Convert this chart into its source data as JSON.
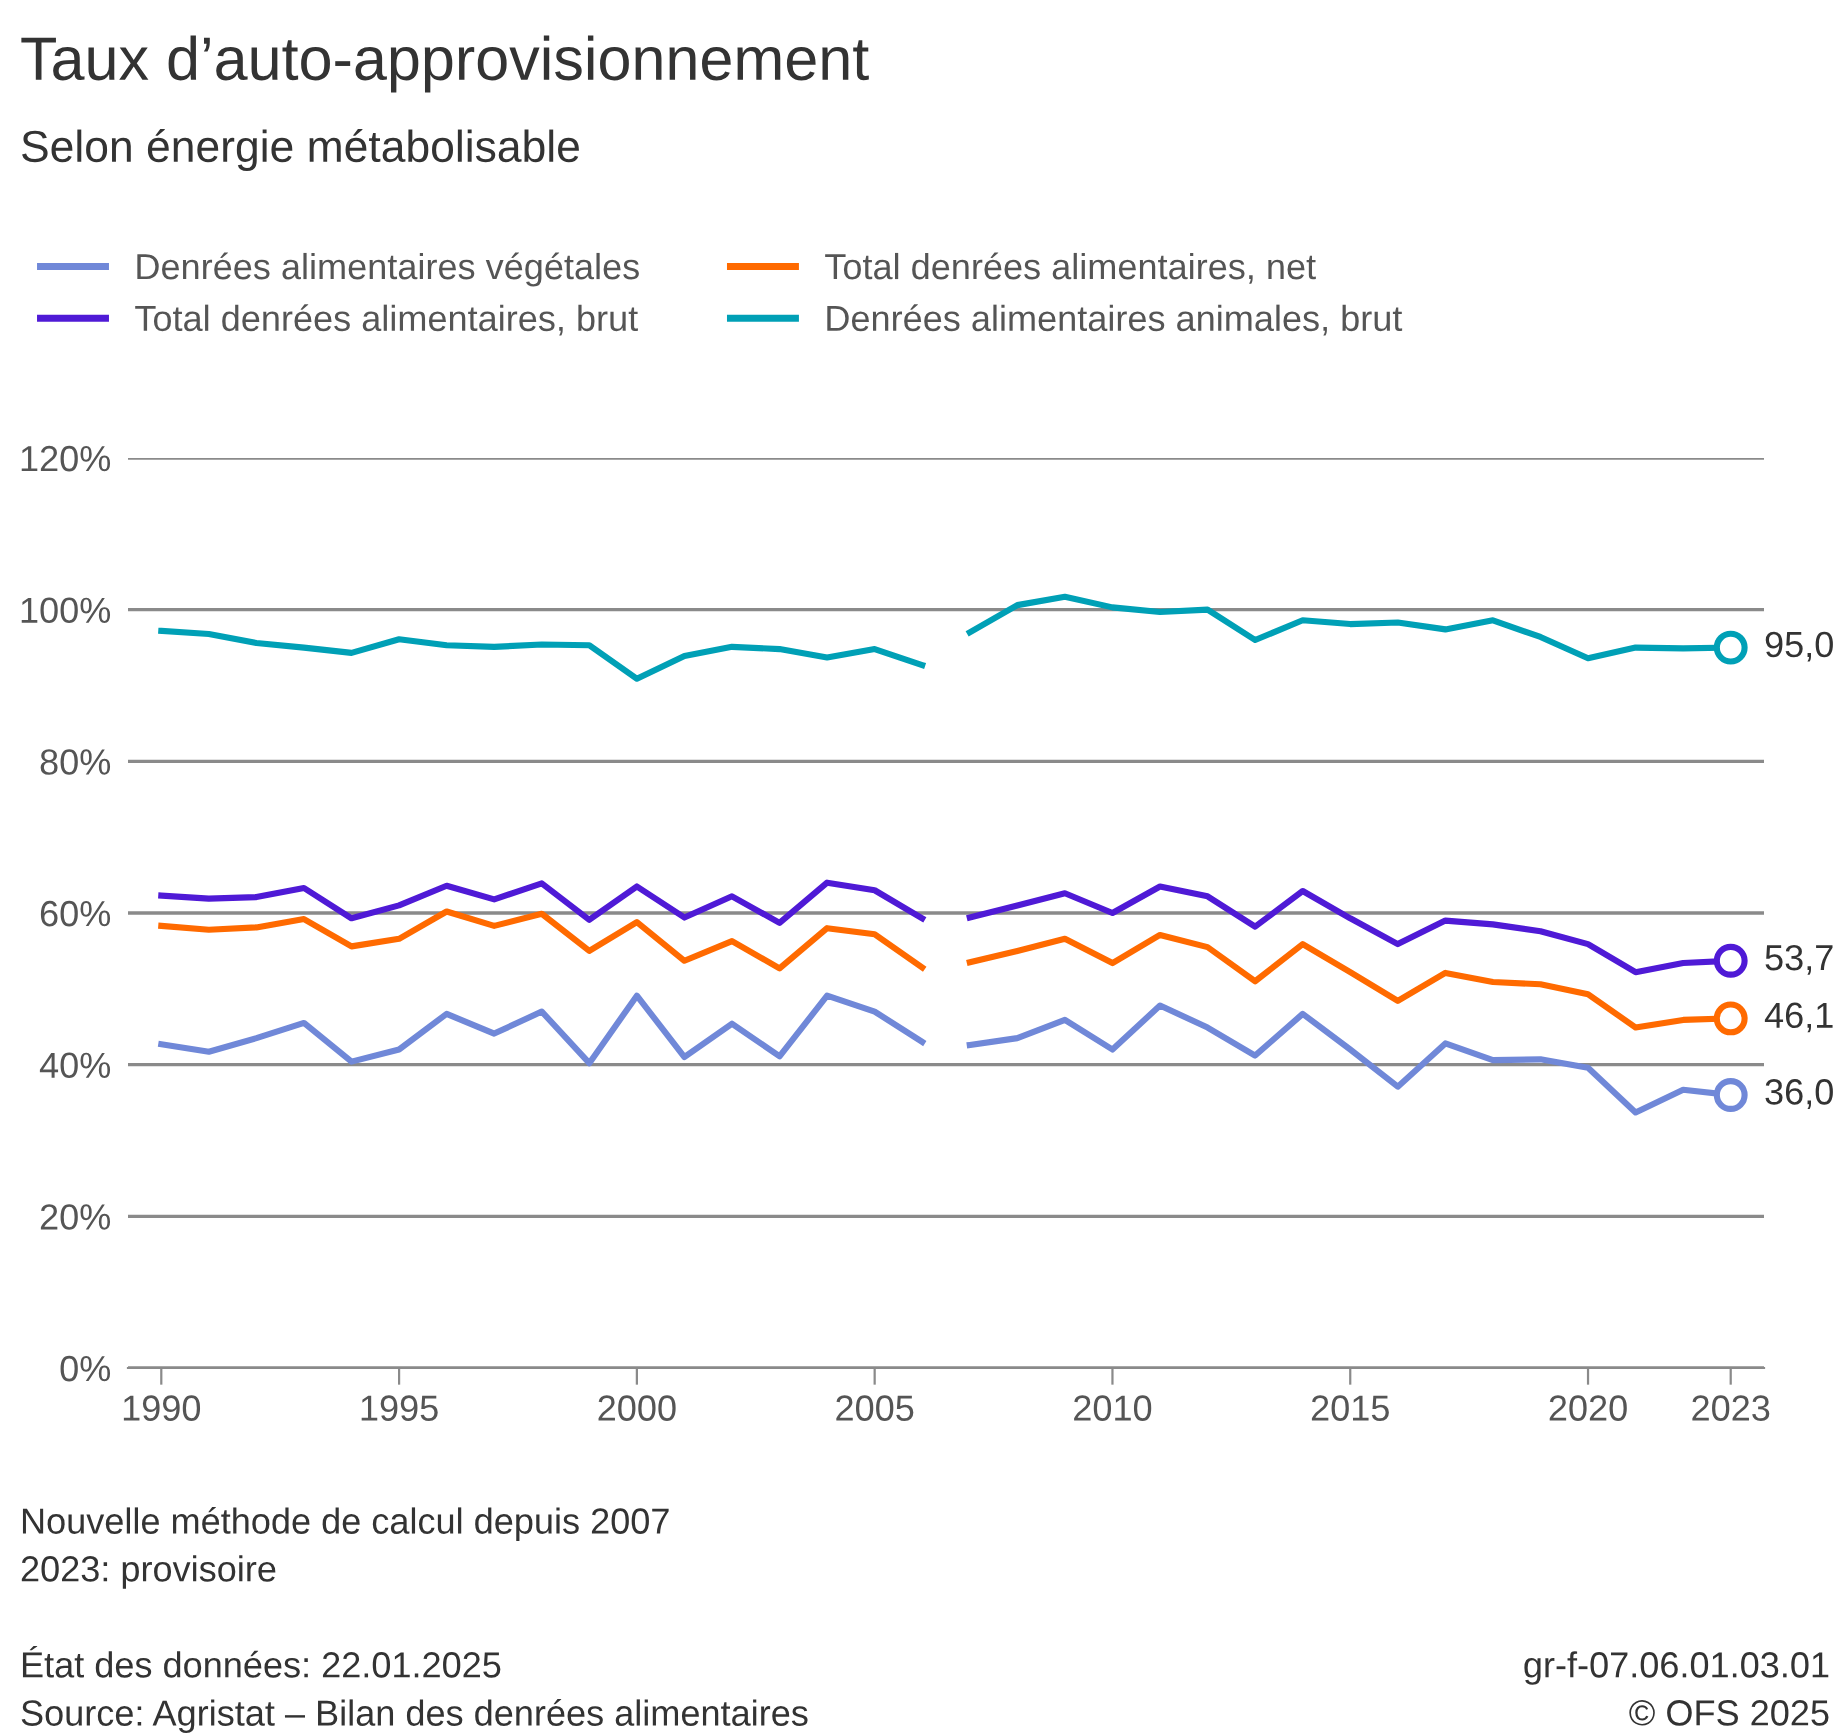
{
  "chart_data": {
    "type": "line",
    "title": "Taux d’auto-approvisionnement",
    "subtitle": "Selon énergie métabolisable",
    "x": [
      1990,
      1991,
      1992,
      1993,
      1994,
      1995,
      1996,
      1997,
      1998,
      1999,
      2000,
      2001,
      2002,
      2003,
      2004,
      2005,
      2006,
      2006.5,
      2007,
      2008,
      2009,
      2010,
      2011,
      2012,
      2013,
      2014,
      2015,
      2016,
      2017,
      2018,
      2019,
      2020,
      2021,
      2022,
      2023
    ],
    "series": [
      {
        "name": "Denrées alimentaires végétales",
        "color": "#7088d8",
        "values": [
          42.7,
          41.7,
          43.5,
          45.5,
          40.4,
          42.0,
          46.7,
          44.1,
          47.0,
          40.2,
          49.1,
          41.0,
          45.4,
          41.1,
          49.1,
          47.0,
          43.0,
          null,
          42.6,
          43.5,
          45.9,
          42.0,
          47.8,
          44.9,
          41.2,
          46.7,
          42.0,
          37.1,
          42.8,
          40.6,
          40.7,
          39.6,
          33.7,
          36.7,
          36.0
        ],
        "value_labels": [
          null,
          null,
          null,
          null,
          null,
          null,
          null,
          null,
          null,
          null,
          null,
          null,
          null,
          null,
          null,
          null,
          null,
          null,
          null,
          null,
          null,
          null,
          null,
          null,
          null,
          null,
          null,
          null,
          null,
          null,
          null,
          null,
          null,
          null,
          "36,0"
        ]
      },
      {
        "name": "Total denrées alimentaires, net",
        "color": "#ff6a00",
        "values": [
          58.3,
          57.8,
          58.1,
          59.2,
          55.6,
          56.6,
          60.2,
          58.3,
          59.9,
          55.0,
          58.8,
          53.7,
          56.3,
          52.7,
          58.0,
          57.2,
          52.8,
          null,
          53.5,
          55.0,
          56.6,
          53.4,
          57.1,
          55.5,
          51.0,
          55.9,
          52.2,
          48.4,
          52.1,
          50.9,
          50.6,
          49.3,
          44.9,
          45.9,
          46.1
        ],
        "value_labels": [
          null,
          null,
          null,
          null,
          null,
          null,
          null,
          null,
          null,
          null,
          null,
          null,
          null,
          null,
          null,
          null,
          null,
          null,
          null,
          null,
          null,
          null,
          null,
          null,
          null,
          null,
          null,
          null,
          null,
          null,
          null,
          null,
          null,
          null,
          "46,1"
        ]
      },
      {
        "name": "Total denrées alimentaires, brut",
        "color": "#4f1ad6",
        "values": [
          62.3,
          61.9,
          62.1,
          63.3,
          59.3,
          61.0,
          63.6,
          61.8,
          63.9,
          59.1,
          63.5,
          59.4,
          62.2,
          58.7,
          64.0,
          63.0,
          59.3,
          null,
          59.4,
          61.0,
          62.6,
          60.0,
          63.5,
          62.2,
          58.2,
          62.9,
          59.3,
          55.9,
          59.0,
          58.5,
          57.6,
          55.9,
          52.2,
          53.4,
          53.7
        ],
        "value_labels": [
          null,
          null,
          null,
          null,
          null,
          null,
          null,
          null,
          null,
          null,
          null,
          null,
          null,
          null,
          null,
          null,
          null,
          null,
          null,
          null,
          null,
          null,
          null,
          null,
          null,
          null,
          null,
          null,
          null,
          null,
          null,
          null,
          null,
          null,
          "53,7"
        ]
      },
      {
        "name": "Denrées alimentaires animales, brut",
        "color": "#00a0b6",
        "values": [
          97.2,
          96.8,
          95.6,
          95.0,
          94.3,
          96.1,
          95.3,
          95.1,
          95.4,
          95.3,
          90.9,
          93.9,
          95.1,
          94.8,
          93.7,
          94.8,
          92.7,
          null,
          97.0,
          100.6,
          101.7,
          100.3,
          99.7,
          100.0,
          96.0,
          98.6,
          98.1,
          98.3,
          97.4,
          98.6,
          96.4,
          93.6,
          95.0,
          94.9,
          95.0
        ],
        "value_labels": [
          null,
          null,
          null,
          null,
          null,
          null,
          null,
          null,
          null,
          null,
          null,
          null,
          null,
          null,
          null,
          null,
          null,
          null,
          null,
          null,
          null,
          null,
          null,
          null,
          null,
          null,
          null,
          null,
          null,
          null,
          null,
          null,
          null,
          null,
          "95,0"
        ]
      }
    ],
    "xlim": [
      1989.3,
      2023.7
    ],
    "xticks": [
      1990,
      1995,
      2000,
      2005,
      2010,
      2015,
      2020,
      2023
    ],
    "ylim": [
      0,
      120
    ],
    "yticks": [
      {
        "value": 0,
        "label": "0%"
      },
      {
        "value": 20,
        "label": "20%"
      },
      {
        "value": 40,
        "label": "40%"
      },
      {
        "value": 60,
        "label": "60%"
      },
      {
        "value": 80,
        "label": "80%"
      },
      {
        "value": 100,
        "label": "100%"
      },
      {
        "value": 120,
        "label": "120%"
      }
    ],
    "grid": "y",
    "legend": "top",
    "marker": "none",
    "line_style": "solid",
    "annotations": [
      "Nouvelle méthode de calcul depuis 2007",
      "2023: provisoire",
      "État des données: 22.01.2025",
      "Source: Agristat – Bilan des denrées alimentaires",
      "gr-f-07.06.01.03.01",
      "© OFS 2025"
    ]
  }
}
